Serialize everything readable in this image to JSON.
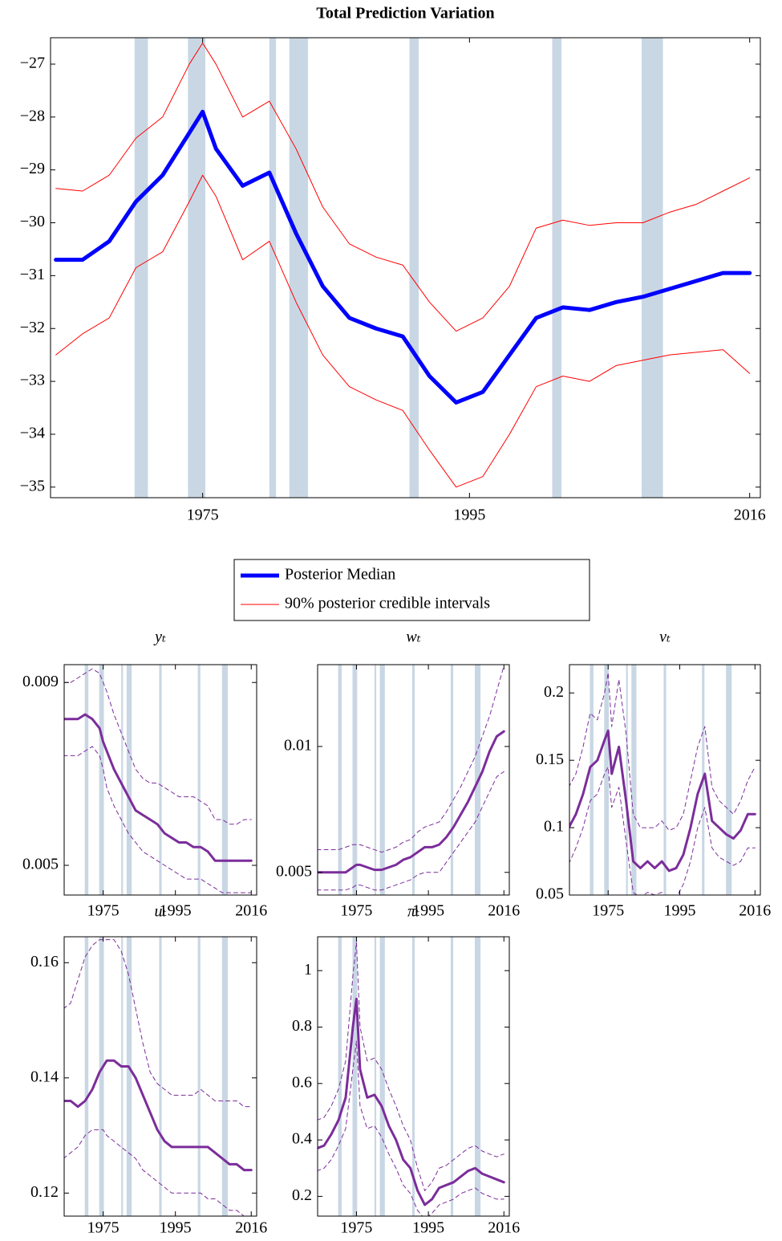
{
  "chart_data": [
    {
      "type": "line",
      "title": "Total Prediction Variation",
      "legend": "bottom",
      "x": [
        1964,
        1966,
        1968,
        1970,
        1972,
        1974,
        1975,
        1976,
        1978,
        1980,
        1982,
        1984,
        1986,
        1988,
        1990,
        1992,
        1994,
        1996,
        1998,
        2000,
        2002,
        2004,
        2006,
        2008,
        2010,
        2012,
        2014,
        2016
      ],
      "xlim": [
        1963.6,
        2016.8
      ],
      "xticks": [
        1975,
        1995,
        2016
      ],
      "ylim": [
        -35.2,
        -26.5
      ],
      "yticks": [
        {
          "value": -27,
          "label": "−27"
        },
        {
          "value": -28,
          "label": "−28"
        },
        {
          "value": -29,
          "label": "−29"
        },
        {
          "value": -30,
          "label": "−30"
        },
        {
          "value": -31,
          "label": "−31"
        },
        {
          "value": -32,
          "label": "−32"
        },
        {
          "value": -33,
          "label": "−33"
        },
        {
          "value": -34,
          "label": "−34"
        },
        {
          "value": -35,
          "label": "−35"
        }
      ],
      "recessions": [
        [
          1969.9,
          1970.9
        ],
        [
          1973.9,
          1975.2
        ],
        [
          1980.0,
          1980.5
        ],
        [
          1981.5,
          1982.9
        ],
        [
          1990.5,
          1991.2
        ],
        [
          2001.2,
          2001.9
        ],
        [
          2007.9,
          2009.5
        ]
      ],
      "recession_color": "#c9d7e4",
      "series": [
        {
          "name": "Posterior Median",
          "color": "#0000ff",
          "width": 5,
          "dash": false,
          "values": [
            -30.7,
            -30.7,
            -30.35,
            -29.6,
            -29.1,
            -28.3,
            -27.9,
            -28.6,
            -29.3,
            -29.05,
            -30.2,
            -31.2,
            -31.8,
            -32.0,
            -32.15,
            -32.9,
            -33.4,
            -33.2,
            -32.5,
            -31.8,
            -31.6,
            -31.65,
            -31.5,
            -31.4,
            -31.25,
            -31.1,
            -30.95,
            -30.95
          ]
        },
        {
          "name": "90% posterior credible intervals",
          "color": "#ff0000",
          "width": 1,
          "dash": false,
          "upper": [
            -29.35,
            -29.4,
            -29.1,
            -28.4,
            -28.0,
            -27.0,
            -26.6,
            -27.0,
            -28.0,
            -27.7,
            -28.6,
            -29.7,
            -30.4,
            -30.65,
            -30.8,
            -31.5,
            -32.05,
            -31.8,
            -31.2,
            -30.1,
            -29.95,
            -30.05,
            -30.0,
            -30.0,
            -29.8,
            -29.65,
            -29.4,
            -29.15
          ],
          "lower": [
            -32.5,
            -32.1,
            -31.8,
            -30.85,
            -30.55,
            -29.6,
            -29.1,
            -29.5,
            -30.7,
            -30.35,
            -31.5,
            -32.5,
            -33.1,
            -33.35,
            -33.55,
            -34.3,
            -35.0,
            -34.8,
            -34.0,
            -33.1,
            -32.9,
            -33.0,
            -32.7,
            -32.6,
            -32.5,
            -32.45,
            -32.4,
            -32.85
          ]
        }
      ]
    },
    {
      "type": "line",
      "title": "yₜ",
      "x": [
        1964,
        1966,
        1968,
        1970,
        1972,
        1974,
        1975,
        1976,
        1978,
        1980,
        1982,
        1984,
        1986,
        1988,
        1990,
        1992,
        1994,
        1996,
        1998,
        2000,
        2002,
        2004,
        2006,
        2008,
        2010,
        2012,
        2014,
        2016
      ],
      "xlim": [
        1964.2,
        2017.5
      ],
      "xticks": [
        1975,
        1995,
        2016
      ],
      "ylim": [
        0.00435,
        0.00939
      ],
      "yticks": [
        0.009,
        0.005
      ],
      "recessions": [
        [
          1969.9,
          1970.9
        ],
        [
          1973.9,
          1975.2
        ],
        [
          1980.0,
          1980.5
        ],
        [
          1981.5,
          1982.9
        ],
        [
          1990.5,
          1991.2
        ],
        [
          2001.2,
          2001.9
        ],
        [
          2007.9,
          2009.5
        ]
      ],
      "recession_color": "#c9d7e4",
      "series": [
        {
          "color": "#7b2d9a",
          "width": 3,
          "dash": false,
          "values": [
            0.0082,
            0.0082,
            0.0082,
            0.0083,
            0.0082,
            0.008,
            0.0077,
            0.0075,
            0.0071,
            0.0068,
            0.0065,
            0.0062,
            0.0061,
            0.006,
            0.0059,
            0.0057,
            0.0056,
            0.0055,
            0.0055,
            0.0054,
            0.0054,
            0.0053,
            0.0051,
            0.0051,
            0.0051,
            0.0051,
            0.0051,
            0.0051
          ]
        },
        {
          "color": "#7b2d9a",
          "width": 1,
          "dash": true,
          "upper": [
            0.009,
            0.009,
            0.0091,
            0.0092,
            0.0093,
            0.0092,
            0.009,
            0.0088,
            0.0083,
            0.0079,
            0.0075,
            0.0071,
            0.0069,
            0.0068,
            0.0068,
            0.0067,
            0.0066,
            0.0065,
            0.0065,
            0.0065,
            0.0064,
            0.0063,
            0.006,
            0.006,
            0.0059,
            0.0059,
            0.006,
            0.006
          ],
          "lower": [
            0.0074,
            0.0074,
            0.0074,
            0.0075,
            0.0076,
            0.0074,
            0.0071,
            0.0067,
            0.0063,
            0.006,
            0.0057,
            0.0055,
            0.0053,
            0.0052,
            0.0051,
            0.005,
            0.0049,
            0.0048,
            0.0047,
            0.0047,
            0.0047,
            0.0046,
            0.0045,
            0.0044,
            0.0044,
            0.0044,
            0.0044,
            0.0044
          ]
        }
      ]
    },
    {
      "type": "line",
      "title": "wₜ",
      "x": [
        1964,
        1966,
        1968,
        1970,
        1972,
        1974,
        1975,
        1976,
        1978,
        1980,
        1982,
        1984,
        1986,
        1988,
        1990,
        1992,
        1994,
        1996,
        1998,
        2000,
        2002,
        2004,
        2006,
        2008,
        2010,
        2012,
        2014,
        2016
      ],
      "xlim": [
        1964.2,
        2017.5
      ],
      "xticks": [
        1975,
        1995,
        2016
      ],
      "ylim": [
        0.0041,
        0.01325
      ],
      "yticks": [
        0.01,
        0.005
      ],
      "recessions": [
        [
          1969.9,
          1970.9
        ],
        [
          1973.9,
          1975.2
        ],
        [
          1980.0,
          1980.5
        ],
        [
          1981.5,
          1982.9
        ],
        [
          1990.5,
          1991.2
        ],
        [
          2001.2,
          2001.9
        ],
        [
          2007.9,
          2009.5
        ]
      ],
      "recession_color": "#c9d7e4",
      "series": [
        {
          "color": "#7b2d9a",
          "width": 3,
          "dash": false,
          "values": [
            0.005,
            0.005,
            0.005,
            0.005,
            0.005,
            0.0052,
            0.0053,
            0.0053,
            0.0052,
            0.0051,
            0.0051,
            0.0052,
            0.0053,
            0.0055,
            0.0056,
            0.0058,
            0.006,
            0.006,
            0.0061,
            0.0064,
            0.0068,
            0.0073,
            0.0078,
            0.0084,
            0.009,
            0.0098,
            0.0104,
            0.0106
          ]
        },
        {
          "color": "#7b2d9a",
          "width": 1,
          "dash": true,
          "upper": [
            0.0059,
            0.0059,
            0.0059,
            0.0059,
            0.006,
            0.0061,
            0.0061,
            0.0061,
            0.006,
            0.0059,
            0.0058,
            0.0059,
            0.006,
            0.0062,
            0.0063,
            0.0066,
            0.0068,
            0.0069,
            0.007,
            0.0074,
            0.0079,
            0.0084,
            0.009,
            0.0096,
            0.0104,
            0.0112,
            0.0122,
            0.0132
          ],
          "lower": [
            0.0043,
            0.0043,
            0.0043,
            0.0043,
            0.0043,
            0.0044,
            0.0045,
            0.0045,
            0.0044,
            0.0043,
            0.0043,
            0.0044,
            0.0045,
            0.0046,
            0.0047,
            0.0049,
            0.005,
            0.005,
            0.005,
            0.0054,
            0.0058,
            0.0062,
            0.0066,
            0.007,
            0.0076,
            0.0082,
            0.0088,
            0.009
          ]
        }
      ]
    },
    {
      "type": "line",
      "title": "vₜ",
      "x": [
        1964,
        1966,
        1968,
        1970,
        1972,
        1974,
        1975,
        1976,
        1978,
        1980,
        1982,
        1984,
        1986,
        1988,
        1990,
        1992,
        1994,
        1996,
        1998,
        2000,
        2002,
        2004,
        2006,
        2008,
        2010,
        2012,
        2014,
        2016
      ],
      "xlim": [
        1964.2,
        2017.5
      ],
      "xticks": [
        1975,
        1995,
        2016
      ],
      "ylim": [
        0.05,
        0.221
      ],
      "yticks": [
        0.2,
        0.15,
        0.1,
        0.05
      ],
      "recessions": [
        [
          1969.9,
          1970.9
        ],
        [
          1973.9,
          1975.2
        ],
        [
          1980.0,
          1980.5
        ],
        [
          1981.5,
          1982.9
        ],
        [
          1990.5,
          1991.2
        ],
        [
          2001.2,
          2001.9
        ],
        [
          2007.9,
          2009.5
        ]
      ],
      "recession_color": "#c9d7e4",
      "series": [
        {
          "color": "#7b2d9a",
          "width": 3,
          "dash": false,
          "values": [
            0.1,
            0.11,
            0.125,
            0.145,
            0.15,
            0.165,
            0.172,
            0.14,
            0.16,
            0.12,
            0.075,
            0.07,
            0.075,
            0.07,
            0.075,
            0.068,
            0.07,
            0.08,
            0.1,
            0.125,
            0.14,
            0.105,
            0.1,
            0.095,
            0.092,
            0.098,
            0.11,
            0.11
          ]
        },
        {
          "color": "#7b2d9a",
          "width": 1,
          "dash": true,
          "upper": [
            0.13,
            0.14,
            0.16,
            0.185,
            0.18,
            0.2,
            0.215,
            0.175,
            0.21,
            0.17,
            0.11,
            0.1,
            0.1,
            0.1,
            0.105,
            0.098,
            0.1,
            0.11,
            0.135,
            0.16,
            0.175,
            0.13,
            0.12,
            0.115,
            0.11,
            0.12,
            0.135,
            0.145
          ],
          "lower": [
            0.073,
            0.085,
            0.1,
            0.12,
            0.125,
            0.14,
            0.145,
            0.115,
            0.13,
            0.09,
            0.052,
            0.048,
            0.052,
            0.05,
            0.052,
            0.045,
            0.048,
            0.058,
            0.075,
            0.1,
            0.115,
            0.085,
            0.078,
            0.075,
            0.072,
            0.075,
            0.085,
            0.085
          ]
        }
      ]
    },
    {
      "type": "line",
      "title": "uₜ",
      "x": [
        1964,
        1966,
        1968,
        1970,
        1972,
        1974,
        1975,
        1976,
        1978,
        1980,
        1982,
        1984,
        1986,
        1988,
        1990,
        1992,
        1994,
        1996,
        1998,
        2000,
        2002,
        2004,
        2006,
        2008,
        2010,
        2012,
        2014,
        2016
      ],
      "xlim": [
        1964.2,
        2017.5
      ],
      "xticks": [
        1975,
        1995,
        2016
      ],
      "ylim": [
        0.116,
        0.1645
      ],
      "yticks": [
        0.16,
        0.14,
        0.12
      ],
      "recessions": [
        [
          1969.9,
          1970.9
        ],
        [
          1973.9,
          1975.2
        ],
        [
          1980.0,
          1980.5
        ],
        [
          1981.5,
          1982.9
        ],
        [
          1990.5,
          1991.2
        ],
        [
          2001.2,
          2001.9
        ],
        [
          2007.9,
          2009.5
        ]
      ],
      "recession_color": "#c9d7e4",
      "series": [
        {
          "color": "#7b2d9a",
          "width": 3,
          "dash": false,
          "values": [
            0.136,
            0.136,
            0.135,
            0.136,
            0.138,
            0.141,
            0.142,
            0.143,
            0.143,
            0.142,
            0.142,
            0.14,
            0.137,
            0.134,
            0.131,
            0.129,
            0.128,
            0.128,
            0.128,
            0.128,
            0.128,
            0.128,
            0.127,
            0.126,
            0.125,
            0.125,
            0.124,
            0.124
          ]
        },
        {
          "color": "#7b2d9a",
          "width": 1,
          "dash": true,
          "upper": [
            0.152,
            0.153,
            0.157,
            0.161,
            0.163,
            0.164,
            0.164,
            0.164,
            0.164,
            0.162,
            0.158,
            0.152,
            0.146,
            0.141,
            0.139,
            0.138,
            0.137,
            0.137,
            0.137,
            0.137,
            0.138,
            0.137,
            0.136,
            0.136,
            0.136,
            0.136,
            0.135,
            0.135
          ],
          "lower": [
            0.126,
            0.127,
            0.128,
            0.13,
            0.131,
            0.131,
            0.131,
            0.13,
            0.129,
            0.128,
            0.127,
            0.126,
            0.124,
            0.123,
            0.122,
            0.121,
            0.12,
            0.12,
            0.12,
            0.12,
            0.12,
            0.119,
            0.119,
            0.118,
            0.117,
            0.117,
            0.116,
            0.116
          ]
        }
      ]
    },
    {
      "type": "line",
      "title": "πₜ",
      "x": [
        1964,
        1966,
        1968,
        1970,
        1972,
        1974,
        1975,
        1976,
        1978,
        1980,
        1982,
        1984,
        1986,
        1988,
        1990,
        1992,
        1994,
        1996,
        1998,
        2000,
        2002,
        2004,
        2006,
        2008,
        2010,
        2012,
        2014,
        2016
      ],
      "xlim": [
        1964.2,
        2017.5
      ],
      "xticks": [
        1975,
        1995,
        2016
      ],
      "ylim": [
        0.13,
        1.12
      ],
      "yticks": [
        1,
        0.8,
        0.6,
        0.4,
        0.2
      ],
      "recessions": [
        [
          1969.9,
          1970.9
        ],
        [
          1973.9,
          1975.2
        ],
        [
          1980.0,
          1980.5
        ],
        [
          1981.5,
          1982.9
        ],
        [
          1990.5,
          1991.2
        ],
        [
          2001.2,
          2001.9
        ],
        [
          2007.9,
          2009.5
        ]
      ],
      "recession_color": "#c9d7e4",
      "series": [
        {
          "color": "#7b2d9a",
          "width": 3,
          "dash": false,
          "values": [
            0.37,
            0.38,
            0.42,
            0.47,
            0.55,
            0.8,
            0.9,
            0.65,
            0.55,
            0.56,
            0.52,
            0.45,
            0.4,
            0.33,
            0.3,
            0.22,
            0.17,
            0.19,
            0.23,
            0.24,
            0.25,
            0.27,
            0.29,
            0.3,
            0.28,
            0.27,
            0.26,
            0.25
          ]
        },
        {
          "color": "#7b2d9a",
          "width": 1,
          "dash": true,
          "upper": [
            0.47,
            0.48,
            0.52,
            0.58,
            0.68,
            0.98,
            1.1,
            0.8,
            0.68,
            0.69,
            0.65,
            0.58,
            0.52,
            0.45,
            0.4,
            0.3,
            0.22,
            0.25,
            0.3,
            0.31,
            0.33,
            0.35,
            0.37,
            0.38,
            0.36,
            0.35,
            0.34,
            0.35
          ],
          "lower": [
            0.29,
            0.3,
            0.33,
            0.38,
            0.44,
            0.65,
            0.75,
            0.52,
            0.44,
            0.45,
            0.41,
            0.35,
            0.3,
            0.24,
            0.21,
            0.15,
            0.12,
            0.14,
            0.17,
            0.18,
            0.19,
            0.21,
            0.22,
            0.23,
            0.21,
            0.2,
            0.19,
            0.19
          ]
        }
      ]
    }
  ]
}
